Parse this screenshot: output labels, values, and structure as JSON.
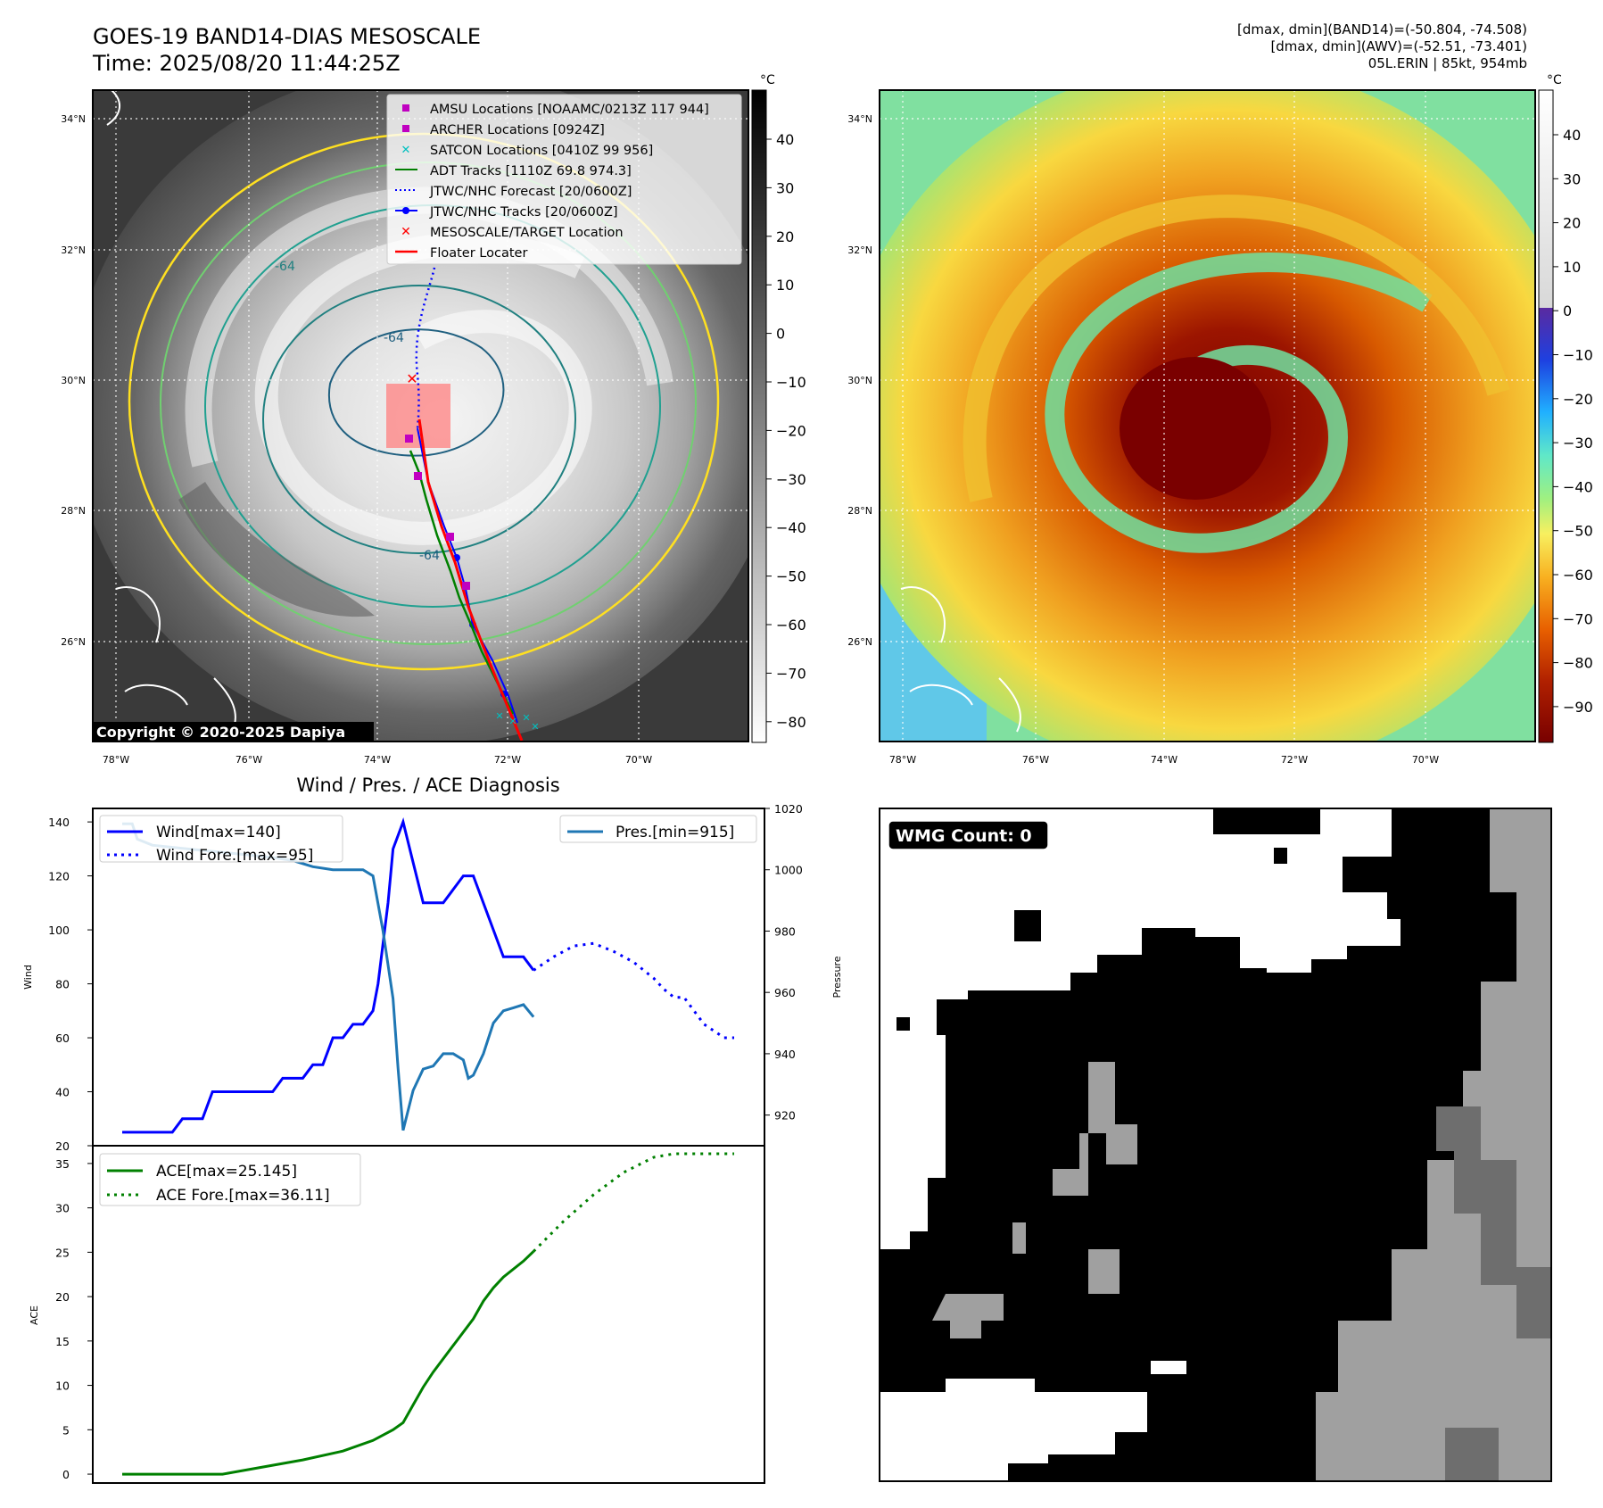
{
  "header": {
    "title_line1": "GOES-19 BAND14-DIAS MESOSCALE",
    "title_line2": "Time: 2025/08/20 11:44:25Z",
    "right_line1": "[dmax, dmin](BAND14)=(-50.804, -74.508)",
    "right_line2": "[dmax, dmin](AWV)=(-52.51, -73.401)",
    "right_line3": "05L.ERIN | 85kt, 954mb"
  },
  "map": {
    "lat_labels": [
      "34°N",
      "32°N",
      "30°N",
      "28°N",
      "26°N"
    ],
    "lon_labels": [
      "78°W",
      "76°W",
      "74°W",
      "72°W",
      "70°W"
    ],
    "copyright": "Copyright © 2020-2025 Dapiya",
    "contour_label": "-64",
    "legend": [
      {
        "label": "AMSU Locations [NOAAMC/0213Z 117 944]",
        "marker": "square",
        "color": "#c000c0"
      },
      {
        "label": "ARCHER Locations [0924Z]",
        "marker": "square",
        "color": "#c000c0"
      },
      {
        "label": "SATCON Locations [0410Z 99 956]",
        "marker": "x",
        "color": "#00c0c0"
      },
      {
        "label": "ADT Tracks [1110Z 69.8 974.3]",
        "marker": "line",
        "color": "#008000"
      },
      {
        "label": "JTWC/NHC Forecast [20/0600Z]",
        "marker": "dotted",
        "color": "#0000ff"
      },
      {
        "label": "JTWC/NHC Tracks [20/0600Z]",
        "marker": "line-dot",
        "color": "#0000ff"
      },
      {
        "label": "MESOSCALE/TARGET Location",
        "marker": "x",
        "color": "#ff0000"
      },
      {
        "label": "Floater Locater",
        "marker": "line",
        "color": "#ff0000"
      }
    ]
  },
  "colorbar_gray": {
    "unit": "°C",
    "ticks": [
      "40",
      "30",
      "20",
      "10",
      "0",
      "−10",
      "−20",
      "−30",
      "−40",
      "−50",
      "−60",
      "−70",
      "−80"
    ]
  },
  "colorbar_color": {
    "unit": "°C",
    "ticks": [
      "40",
      "30",
      "20",
      "10",
      "0",
      "−10",
      "−20",
      "−30",
      "−40",
      "−50",
      "−60",
      "−70",
      "−80",
      "−90"
    ]
  },
  "wmg": {
    "label": "WMG Count: 0"
  },
  "chart_data": [
    {
      "type": "line",
      "title": "Wind / Pres. / ACE Diagnosis",
      "ylabel": "Wind",
      "ylim": [
        20,
        145
      ],
      "yticks": [
        20,
        40,
        60,
        80,
        100,
        120,
        140
      ],
      "y2label": "Pressure",
      "y2lim": [
        910,
        1020
      ],
      "y2ticks": [
        920,
        940,
        960,
        980,
        1000,
        1020
      ],
      "series": [
        {
          "name": "Wind[max=140]",
          "axis": "left",
          "color": "#0000ff",
          "style": "solid",
          "values": [
            [
              0,
              25
            ],
            [
              2,
              25
            ],
            [
              4,
              25
            ],
            [
              5,
              25
            ],
            [
              6,
              30
            ],
            [
              8,
              30
            ],
            [
              9,
              40
            ],
            [
              11,
              40
            ],
            [
              13,
              40
            ],
            [
              15,
              40
            ],
            [
              16,
              45
            ],
            [
              18,
              45
            ],
            [
              19,
              50
            ],
            [
              20,
              50
            ],
            [
              21,
              60
            ],
            [
              22,
              60
            ],
            [
              23,
              65
            ],
            [
              24,
              65
            ],
            [
              25,
              70
            ],
            [
              25.5,
              80
            ],
            [
              26,
              95
            ],
            [
              26.5,
              110
            ],
            [
              27,
              130
            ],
            [
              28,
              140
            ],
            [
              29,
              125
            ],
            [
              30,
              110
            ],
            [
              32,
              110
            ],
            [
              34,
              120
            ],
            [
              35,
              120
            ],
            [
              37,
              100
            ],
            [
              38,
              90
            ],
            [
              40,
              90
            ],
            [
              41,
              85
            ]
          ]
        },
        {
          "name": "Wind Fore.[max=95]",
          "axis": "left",
          "color": "#0000ff",
          "style": "dotted",
          "values": [
            [
              41,
              85
            ],
            [
              43,
              90
            ],
            [
              45,
              94
            ],
            [
              47,
              95
            ],
            [
              49,
              92
            ],
            [
              51,
              88
            ],
            [
              53,
              82
            ],
            [
              54,
              78
            ],
            [
              55,
              75
            ],
            [
              56,
              75
            ],
            [
              57,
              70
            ],
            [
              58,
              65
            ],
            [
              60,
              60
            ],
            [
              61,
              60
            ]
          ]
        },
        {
          "name": "Pres.[min=915]",
          "axis": "right",
          "color": "#1f77b4",
          "style": "solid",
          "values": [
            [
              0,
              1015
            ],
            [
              1,
              1015
            ],
            [
              1.5,
              1010
            ],
            [
              3,
              1008
            ],
            [
              6,
              1007
            ],
            [
              9,
              1006
            ],
            [
              12,
              1005
            ],
            [
              15,
              1004
            ],
            [
              17,
              1003
            ],
            [
              19,
              1001
            ],
            [
              21,
              1000
            ],
            [
              22,
              1000
            ],
            [
              24,
              1000
            ],
            [
              25,
              998
            ],
            [
              26,
              980
            ],
            [
              27,
              958
            ],
            [
              27.5,
              935
            ],
            [
              28,
              915
            ],
            [
              29,
              928
            ],
            [
              30,
              935
            ],
            [
              31,
              936
            ],
            [
              32,
              940
            ],
            [
              33,
              940
            ],
            [
              34,
              938
            ],
            [
              34.5,
              932
            ],
            [
              35,
              933
            ],
            [
              36,
              940
            ],
            [
              37,
              950
            ],
            [
              38,
              954
            ],
            [
              39,
              955
            ],
            [
              40,
              956
            ],
            [
              41,
              952
            ]
          ]
        }
      ]
    },
    {
      "type": "line",
      "ylabel": "ACE",
      "ylim": [
        -1,
        37
      ],
      "yticks": [
        0,
        5,
        10,
        15,
        20,
        25,
        30,
        35
      ],
      "series": [
        {
          "name": "ACE[max=25.145]",
          "color": "#008000",
          "style": "solid",
          "values": [
            [
              0,
              0
            ],
            [
              5,
              0
            ],
            [
              10,
              0
            ],
            [
              14,
              0.8
            ],
            [
              18,
              1.6
            ],
            [
              22,
              2.6
            ],
            [
              25,
              3.8
            ],
            [
              27,
              5
            ],
            [
              28,
              5.8
            ],
            [
              29,
              7.8
            ],
            [
              30,
              9.8
            ],
            [
              31,
              11.5
            ],
            [
              33,
              14.5
            ],
            [
              35,
              17.5
            ],
            [
              36,
              19.5
            ],
            [
              37,
              21
            ],
            [
              38,
              22.2
            ],
            [
              40,
              24
            ],
            [
              41,
              25.1
            ]
          ]
        },
        {
          "name": "ACE Fore.[max=36.11]",
          "color": "#008000",
          "style": "dotted",
          "values": [
            [
              41,
              25.1
            ],
            [
              44,
              28.5
            ],
            [
              47,
              31.5
            ],
            [
              50,
              34
            ],
            [
              53,
              35.7
            ],
            [
              55,
              36.1
            ],
            [
              57,
              36.1
            ],
            [
              61,
              36.1
            ]
          ]
        }
      ]
    }
  ]
}
